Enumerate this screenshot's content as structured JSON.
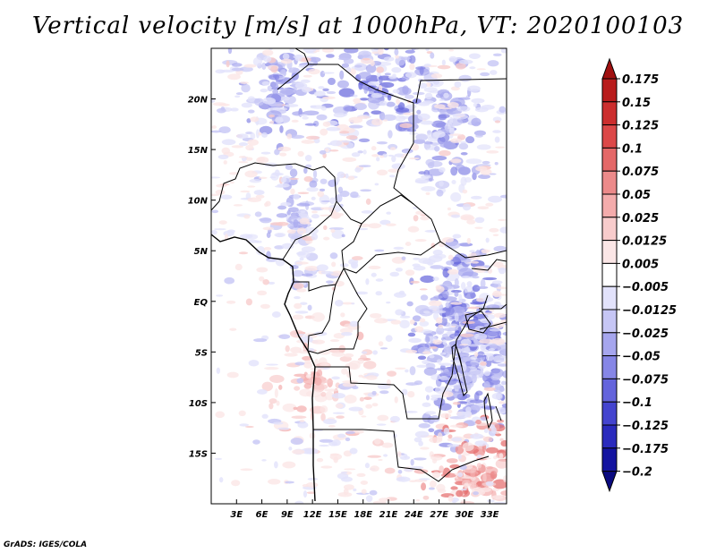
{
  "chart_data": {
    "type": "heatmap",
    "title": "Vertical velocity [m/s] at 1000hPa, VT: 2020100103",
    "variable": "Vertical velocity",
    "units": "m/s",
    "level": "1000hPa",
    "valid_time": "2020100103",
    "x_ticks": [
      {
        "value": 3,
        "label": "3E"
      },
      {
        "value": 6,
        "label": "6E"
      },
      {
        "value": 9,
        "label": "9E"
      },
      {
        "value": 12,
        "label": "12E"
      },
      {
        "value": 15,
        "label": "15E"
      },
      {
        "value": 18,
        "label": "18E"
      },
      {
        "value": 21,
        "label": "21E"
      },
      {
        "value": 24,
        "label": "24E"
      },
      {
        "value": 27,
        "label": "27E"
      },
      {
        "value": 30,
        "label": "30E"
      },
      {
        "value": 33,
        "label": "33E"
      }
    ],
    "y_ticks": [
      {
        "value": 20,
        "label": "20N"
      },
      {
        "value": 15,
        "label": "15N"
      },
      {
        "value": 10,
        "label": "10N"
      },
      {
        "value": 5,
        "label": "5N"
      },
      {
        "value": 0,
        "label": "EQ"
      },
      {
        "value": -5,
        "label": "5S"
      },
      {
        "value": -10,
        "label": "10S"
      },
      {
        "value": -15,
        "label": "15S"
      }
    ],
    "xlim": [
      0,
      35
    ],
    "ylim": [
      -20,
      25
    ],
    "colorbar": {
      "levels": [
        "0.175",
        "0.15",
        "0.125",
        "0.1",
        "0.075",
        "0.05",
        "0.025",
        "0.0125",
        "0.005",
        "-0.005",
        "-0.0125",
        "-0.025",
        "-0.05",
        "-0.075",
        "-0.1",
        "-0.125",
        "-0.175",
        "-0.2"
      ],
      "colors": [
        "#a01010",
        "#b81c1c",
        "#cc2e2e",
        "#dc4848",
        "#e46868",
        "#ec8a8a",
        "#f4acac",
        "#f8cccc",
        "#fbe6e6",
        "#ffffff",
        "#e2e2fb",
        "#c6c6f5",
        "#a6a6ee",
        "#8686e6",
        "#6464dc",
        "#4444cf",
        "#2a2abd",
        "#1414a0",
        "#0a0a80"
      ]
    },
    "features": [
      {
        "lon": 28,
        "lat": 17,
        "sign": -1,
        "strength": 3
      },
      {
        "lon": 19,
        "lat": 21,
        "sign": -1,
        "strength": 4
      },
      {
        "lon": 8,
        "lat": 22,
        "sign": -1,
        "strength": 3
      },
      {
        "lon": 29,
        "lat": -1,
        "sign": -1,
        "strength": 4
      },
      {
        "lon": 31,
        "lat": -4,
        "sign": -1,
        "strength": 4
      },
      {
        "lon": 30,
        "lat": -8,
        "sign": -1,
        "strength": 3
      },
      {
        "lon": 31,
        "lat": -17,
        "sign": 1,
        "strength": 4
      },
      {
        "lon": 13,
        "lat": -8,
        "sign": 1,
        "strength": 2
      },
      {
        "lon": 10,
        "lat": 8,
        "sign": -1,
        "strength": 2
      }
    ]
  },
  "footer": {
    "credit": "GrADS: IGES/COLA"
  }
}
